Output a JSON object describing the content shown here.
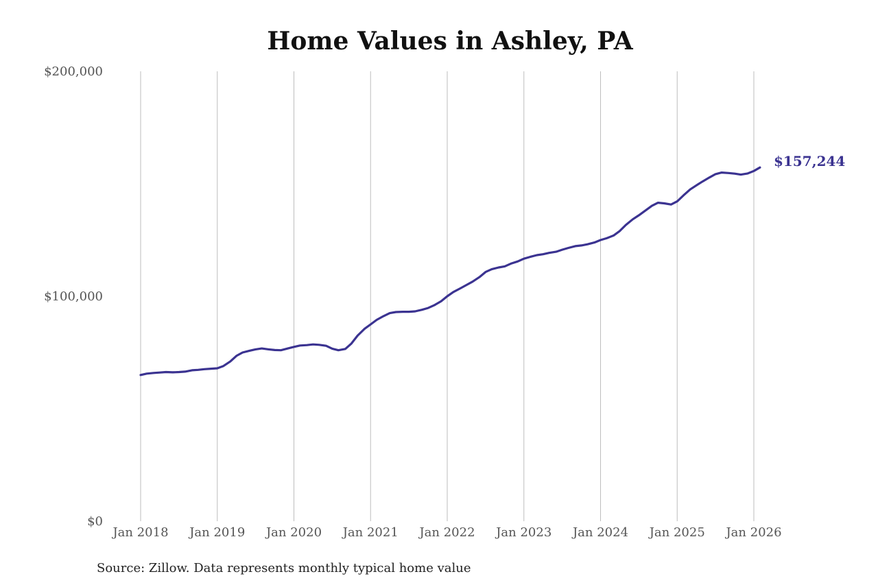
{
  "chart_data": {
    "type": "line",
    "title": "Home Values in Ashley, PA",
    "source": "Source: Zillow. Data represents monthly typical home value",
    "y_ticks": [
      {
        "value": 0,
        "label": "$0"
      },
      {
        "value": 100000,
        "label": "$100,000"
      },
      {
        "value": 200000,
        "label": "$200,000"
      }
    ],
    "x_ticks": [
      {
        "value": 2018.0,
        "label": "Jan 2018"
      },
      {
        "value": 2019.0,
        "label": "Jan 2019"
      },
      {
        "value": 2020.0,
        "label": "Jan 2020"
      },
      {
        "value": 2021.0,
        "label": "Jan 2021"
      },
      {
        "value": 2022.0,
        "label": "Jan 2022"
      },
      {
        "value": 2023.0,
        "label": "Jan 2023"
      },
      {
        "value": 2024.0,
        "label": "Jan 2024"
      },
      {
        "value": 2025.0,
        "label": "Jan 2025"
      },
      {
        "value": 2026.0,
        "label": "Jan 2026"
      }
    ],
    "xlim": [
      2018.0,
      2026.0
    ],
    "ylim": [
      0,
      200000
    ],
    "grid": "vertical",
    "line_color": "#3b3391",
    "end_label": "$157,244",
    "points": [
      [
        2018.0,
        65000
      ],
      [
        2018.08,
        65600
      ],
      [
        2018.17,
        65900
      ],
      [
        2018.25,
        66100
      ],
      [
        2018.33,
        66300
      ],
      [
        2018.42,
        66200
      ],
      [
        2018.5,
        66300
      ],
      [
        2018.58,
        66500
      ],
      [
        2018.67,
        67100
      ],
      [
        2018.75,
        67300
      ],
      [
        2018.83,
        67600
      ],
      [
        2018.92,
        67800
      ],
      [
        2019.0,
        68000
      ],
      [
        2019.08,
        69000
      ],
      [
        2019.17,
        71000
      ],
      [
        2019.25,
        73500
      ],
      [
        2019.33,
        75000
      ],
      [
        2019.42,
        75800
      ],
      [
        2019.5,
        76400
      ],
      [
        2019.58,
        76800
      ],
      [
        2019.67,
        76400
      ],
      [
        2019.75,
        76100
      ],
      [
        2019.83,
        76000
      ],
      [
        2019.92,
        76800
      ],
      [
        2020.0,
        77500
      ],
      [
        2020.08,
        78100
      ],
      [
        2020.17,
        78300
      ],
      [
        2020.25,
        78600
      ],
      [
        2020.33,
        78400
      ],
      [
        2020.42,
        78000
      ],
      [
        2020.5,
        76700
      ],
      [
        2020.58,
        76000
      ],
      [
        2020.67,
        76600
      ],
      [
        2020.75,
        79000
      ],
      [
        2020.83,
        82500
      ],
      [
        2020.92,
        85500
      ],
      [
        2021.0,
        87500
      ],
      [
        2021.08,
        89500
      ],
      [
        2021.17,
        91200
      ],
      [
        2021.25,
        92500
      ],
      [
        2021.33,
        93000
      ],
      [
        2021.42,
        93100
      ],
      [
        2021.5,
        93100
      ],
      [
        2021.58,
        93300
      ],
      [
        2021.67,
        94000
      ],
      [
        2021.75,
        94800
      ],
      [
        2021.83,
        96000
      ],
      [
        2021.92,
        97800
      ],
      [
        2022.0,
        100000
      ],
      [
        2022.08,
        101900
      ],
      [
        2022.17,
        103500
      ],
      [
        2022.25,
        105000
      ],
      [
        2022.33,
        106500
      ],
      [
        2022.42,
        108500
      ],
      [
        2022.5,
        110800
      ],
      [
        2022.58,
        112000
      ],
      [
        2022.67,
        112800
      ],
      [
        2022.75,
        113300
      ],
      [
        2022.83,
        114500
      ],
      [
        2022.92,
        115500
      ],
      [
        2023.0,
        116700
      ],
      [
        2023.08,
        117500
      ],
      [
        2023.17,
        118300
      ],
      [
        2023.25,
        118700
      ],
      [
        2023.33,
        119300
      ],
      [
        2023.42,
        119800
      ],
      [
        2023.5,
        120700
      ],
      [
        2023.58,
        121500
      ],
      [
        2023.67,
        122300
      ],
      [
        2023.75,
        122600
      ],
      [
        2023.83,
        123100
      ],
      [
        2023.92,
        123900
      ],
      [
        2024.0,
        125000
      ],
      [
        2024.08,
        125800
      ],
      [
        2024.17,
        127000
      ],
      [
        2024.25,
        129000
      ],
      [
        2024.33,
        131700
      ],
      [
        2024.42,
        134200
      ],
      [
        2024.5,
        136000
      ],
      [
        2024.58,
        138000
      ],
      [
        2024.67,
        140200
      ],
      [
        2024.75,
        141600
      ],
      [
        2024.83,
        141300
      ],
      [
        2024.92,
        140800
      ],
      [
        2025.0,
        142200
      ],
      [
        2025.08,
        144800
      ],
      [
        2025.17,
        147500
      ],
      [
        2025.25,
        149300
      ],
      [
        2025.33,
        151000
      ],
      [
        2025.42,
        152800
      ],
      [
        2025.5,
        154300
      ],
      [
        2025.58,
        155000
      ],
      [
        2025.67,
        154800
      ],
      [
        2025.75,
        154500
      ],
      [
        2025.83,
        154100
      ],
      [
        2025.92,
        154600
      ],
      [
        2026.0,
        155700
      ],
      [
        2026.08,
        157244
      ]
    ]
  }
}
